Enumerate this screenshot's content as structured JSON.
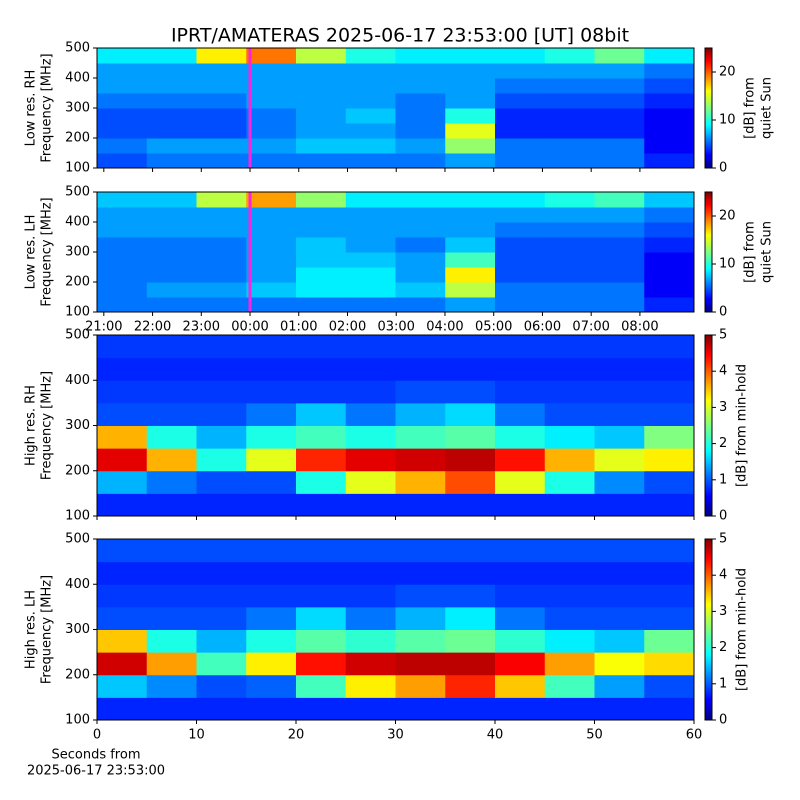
{
  "title": "IPRT/AMATERAS 2025-06-17 23:53:00 [UT]   08bit",
  "chart_data": [
    {
      "type": "heatmap",
      "ylabel": [
        "Low res. RH",
        "Frequency [MHz]"
      ],
      "xlim": [
        20.86,
        33.11
      ],
      "ylim": [
        100,
        500
      ],
      "yticks": [
        100,
        200,
        300,
        400,
        500
      ],
      "zlim": [
        0,
        25
      ],
      "zticks": [
        0,
        10,
        20
      ],
      "colorbar_label": [
        "[dB] from",
        "quiet Sun"
      ],
      "colormap": "jet",
      "vline": {
        "x": 24.0,
        "color": "#ff22dd"
      },
      "z": [
        [
          5,
          6,
          6,
          6,
          6,
          6,
          6,
          7,
          6,
          6,
          6,
          4
        ],
        [
          6,
          7,
          7,
          7,
          8,
          8,
          7,
          13,
          6,
          6,
          6,
          3
        ],
        [
          5,
          5,
          5,
          6,
          7,
          7,
          6,
          15,
          4,
          4,
          4,
          3
        ],
        [
          5,
          5,
          5,
          6,
          7,
          8,
          6,
          10,
          4,
          4,
          4,
          3
        ],
        [
          6,
          6,
          6,
          7,
          7,
          7,
          6,
          7,
          5,
          5,
          5,
          4
        ],
        [
          7,
          7,
          7,
          7,
          7,
          7,
          7,
          7,
          6,
          6,
          6,
          5
        ],
        [
          7,
          7,
          7,
          7,
          7,
          7,
          7,
          7,
          7,
          7,
          7,
          6
        ],
        [
          9,
          9,
          16,
          19,
          14,
          10,
          9,
          9,
          9,
          10,
          12,
          9
        ]
      ]
    },
    {
      "type": "heatmap",
      "ylabel": [
        "Low res. LH",
        "Frequency [MHz]"
      ],
      "xlim": [
        20.86,
        33.11
      ],
      "xticks": [
        {
          "value": 21,
          "label": "21:00"
        },
        {
          "value": 22,
          "label": "22:00"
        },
        {
          "value": 23,
          "label": "23:00"
        },
        {
          "value": 24,
          "label": "00:00"
        },
        {
          "value": 25,
          "label": "01:00"
        },
        {
          "value": 26,
          "label": "02:00"
        },
        {
          "value": 27,
          "label": "03:00"
        },
        {
          "value": 28,
          "label": "04:00"
        },
        {
          "value": 29,
          "label": "05:00"
        },
        {
          "value": 30,
          "label": "06:00"
        },
        {
          "value": 31,
          "label": "07:00"
        },
        {
          "value": 32,
          "label": "08:00"
        }
      ],
      "ylim": [
        100,
        500
      ],
      "yticks": [
        100,
        200,
        300,
        400,
        500
      ],
      "zlim": [
        0,
        25
      ],
      "zticks": [
        0,
        10,
        20
      ],
      "colorbar_label": [
        "[dB] from",
        "quiet Sun"
      ],
      "colormap": "jet",
      "vline": {
        "x": 24.0,
        "color": "#ff22dd"
      },
      "z": [
        [
          6,
          6,
          6,
          6,
          6,
          6,
          6,
          7,
          6,
          6,
          6,
          4
        ],
        [
          6,
          7,
          7,
          8,
          9,
          9,
          8,
          14,
          6,
          6,
          6,
          3
        ],
        [
          6,
          6,
          6,
          7,
          9,
          9,
          7,
          16,
          5,
          5,
          5,
          3
        ],
        [
          6,
          6,
          6,
          7,
          8,
          8,
          7,
          11,
          5,
          5,
          5,
          3
        ],
        [
          6,
          6,
          6,
          7,
          8,
          7,
          6,
          8,
          5,
          5,
          5,
          4
        ],
        [
          7,
          7,
          7,
          7,
          7,
          7,
          7,
          7,
          6,
          6,
          6,
          5
        ],
        [
          7,
          7,
          7,
          7,
          7,
          7,
          7,
          7,
          7,
          7,
          7,
          6
        ],
        [
          8,
          8,
          14,
          18,
          13,
          9,
          9,
          9,
          9,
          10,
          11,
          8
        ]
      ]
    },
    {
      "type": "heatmap",
      "ylabel": [
        "High res. RH",
        "Frequency [MHz]"
      ],
      "xlim": [
        0,
        60
      ],
      "ylim": [
        100,
        500
      ],
      "yticks": [
        100,
        200,
        300,
        400,
        500
      ],
      "zlim": [
        0,
        5
      ],
      "zticks": [
        0,
        1,
        2,
        3,
        4,
        5
      ],
      "colorbar_label": [
        "[dB] from min-hold"
      ],
      "colormap": "jet",
      "z": [
        [
          0.8,
          0.8,
          0.8,
          0.8,
          0.8,
          0.8,
          0.8,
          0.8,
          0.8,
          0.8,
          0.8,
          0.8
        ],
        [
          1.5,
          1.2,
          1.0,
          1.0,
          2.0,
          3.0,
          3.5,
          4.0,
          3.0,
          2.0,
          1.3,
          1.0
        ],
        [
          4.5,
          3.5,
          2.0,
          3.0,
          4.2,
          4.5,
          4.6,
          4.7,
          4.3,
          3.5,
          3.0,
          3.2
        ],
        [
          3.5,
          2.0,
          1.5,
          2.0,
          2.2,
          2.0,
          2.2,
          2.3,
          2.0,
          1.8,
          1.6,
          2.5
        ],
        [
          1.0,
          1.0,
          1.0,
          1.2,
          1.6,
          1.2,
          1.5,
          1.7,
          1.2,
          1.0,
          1.0,
          1.0
        ],
        [
          0.9,
          0.9,
          0.9,
          0.9,
          0.9,
          0.9,
          1.0,
          1.0,
          0.9,
          0.9,
          0.9,
          0.9
        ],
        [
          0.8,
          0.8,
          0.8,
          0.8,
          0.8,
          0.8,
          0.8,
          0.8,
          0.8,
          0.8,
          0.8,
          0.8
        ],
        [
          0.9,
          0.9,
          0.9,
          0.9,
          0.9,
          0.9,
          0.9,
          0.9,
          0.9,
          0.9,
          0.9,
          0.9
        ]
      ]
    },
    {
      "type": "heatmap",
      "ylabel": [
        "High res. LH",
        "Frequency [MHz]"
      ],
      "xlim": [
        0,
        60
      ],
      "xticks": [
        0,
        10,
        20,
        30,
        40,
        50,
        60
      ],
      "xlabel": [
        "Seconds from",
        "2025-06-17 23:53:00"
      ],
      "ylim": [
        100,
        500
      ],
      "yticks": [
        100,
        200,
        300,
        400,
        500
      ],
      "zlim": [
        0,
        5
      ],
      "zticks": [
        0,
        1,
        2,
        3,
        4,
        5
      ],
      "colorbar_label": [
        "[dB] from min-hold"
      ],
      "colormap": "jet",
      "z": [
        [
          0.8,
          0.8,
          0.8,
          0.8,
          0.8,
          0.8,
          0.8,
          0.8,
          0.8,
          0.8,
          0.8,
          0.8
        ],
        [
          1.6,
          1.3,
          1.0,
          1.1,
          2.2,
          3.2,
          3.6,
          4.2,
          3.4,
          2.2,
          1.4,
          1.0
        ],
        [
          4.6,
          3.6,
          2.2,
          3.2,
          4.3,
          4.6,
          4.7,
          4.7,
          4.4,
          3.6,
          3.1,
          3.3
        ],
        [
          3.4,
          2.0,
          1.5,
          2.0,
          2.3,
          2.1,
          2.3,
          2.4,
          2.1,
          1.8,
          1.6,
          2.4
        ],
        [
          1.0,
          1.0,
          1.0,
          1.2,
          1.7,
          1.2,
          1.5,
          1.8,
          1.2,
          1.0,
          1.0,
          1.0
        ],
        [
          0.9,
          0.9,
          0.9,
          0.9,
          0.9,
          0.9,
          1.0,
          1.0,
          0.9,
          0.9,
          0.9,
          0.9
        ],
        [
          0.8,
          0.8,
          0.8,
          0.8,
          0.8,
          0.8,
          0.8,
          0.8,
          0.8,
          0.8,
          0.8,
          0.8
        ],
        [
          1.0,
          1.0,
          1.0,
          1.0,
          1.0,
          1.0,
          1.0,
          1.0,
          1.0,
          1.0,
          1.0,
          1.0
        ]
      ]
    }
  ]
}
